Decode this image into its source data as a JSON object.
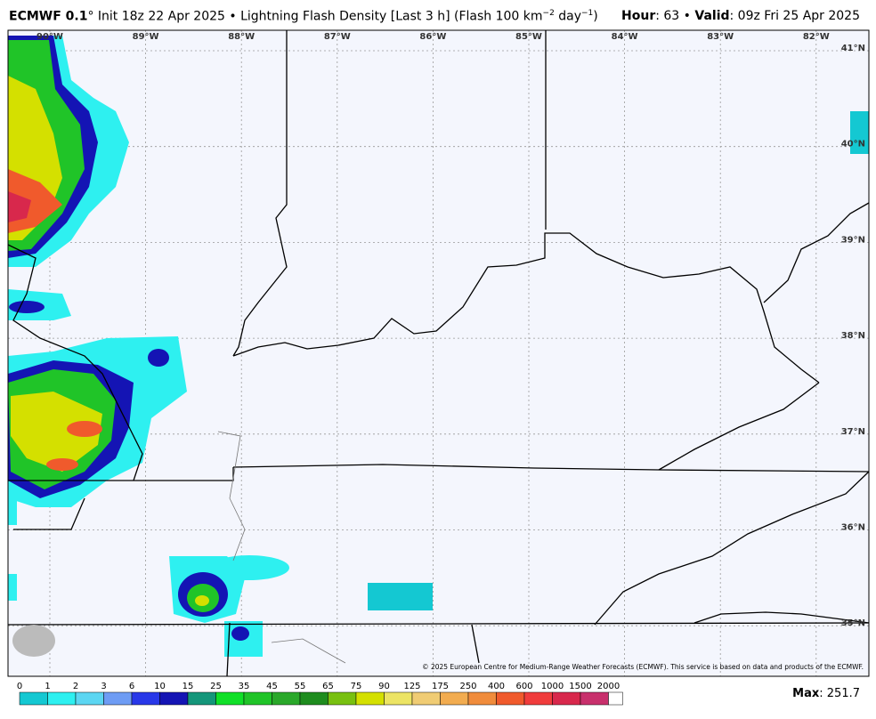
{
  "header": {
    "model": "ECMWF 0.1",
    "degree": "°",
    "init": " Init 18z 22 Apr 2025 • Lightning Flash Density [Last 3 h] (Flash 100 km",
    "exp1": "−2",
    "unit_mid": " day",
    "exp2": "−1",
    "close": ")",
    "hour_label": "Hour",
    "hour_value": ": 63 • ",
    "valid_label": "Valid",
    "valid_value": ": 09z Fri 25 Apr 2025"
  },
  "map": {
    "longitudes": [
      "90°W",
      "89°W",
      "88°W",
      "87°W",
      "86°W",
      "85°W",
      "84°W",
      "83°W",
      "82°W"
    ],
    "latitudes": [
      "41°N",
      "40°N",
      "39°N",
      "38°N",
      "37°N",
      "36°N",
      "35°N"
    ],
    "copyright": "© 2025 European Centre for Medium-Range Weather Forecasts (ECMWF). This service is based on data and products of the ECMWF."
  },
  "colorbar": {
    "labels": [
      "0",
      "1",
      "2",
      "3",
      "6",
      "10",
      "15",
      "25",
      "35",
      "45",
      "55",
      "65",
      "75",
      "90",
      "125",
      "175",
      "250",
      "400",
      "600",
      "1000",
      "1500",
      "2000"
    ],
    "colors": [
      "#14c8d2",
      "#2ef0f0",
      "#5cd6f2",
      "#6e9cf4",
      "#2838e8",
      "#1414b4",
      "#14967a",
      "#10e028",
      "#20c428",
      "#2aa82a",
      "#1e8c1e",
      "#78c010",
      "#d4e000",
      "#ece464",
      "#f0cc74",
      "#f2ac50",
      "#f08c3c",
      "#f05a2c",
      "#f03c3c",
      "#d8284c",
      "#c8306c",
      "#c84aac",
      "#d44cd8",
      "#e434e4",
      "#f23cf4",
      "#ffffff"
    ]
  },
  "max": {
    "label": "Max",
    "value": ": 251.7"
  }
}
